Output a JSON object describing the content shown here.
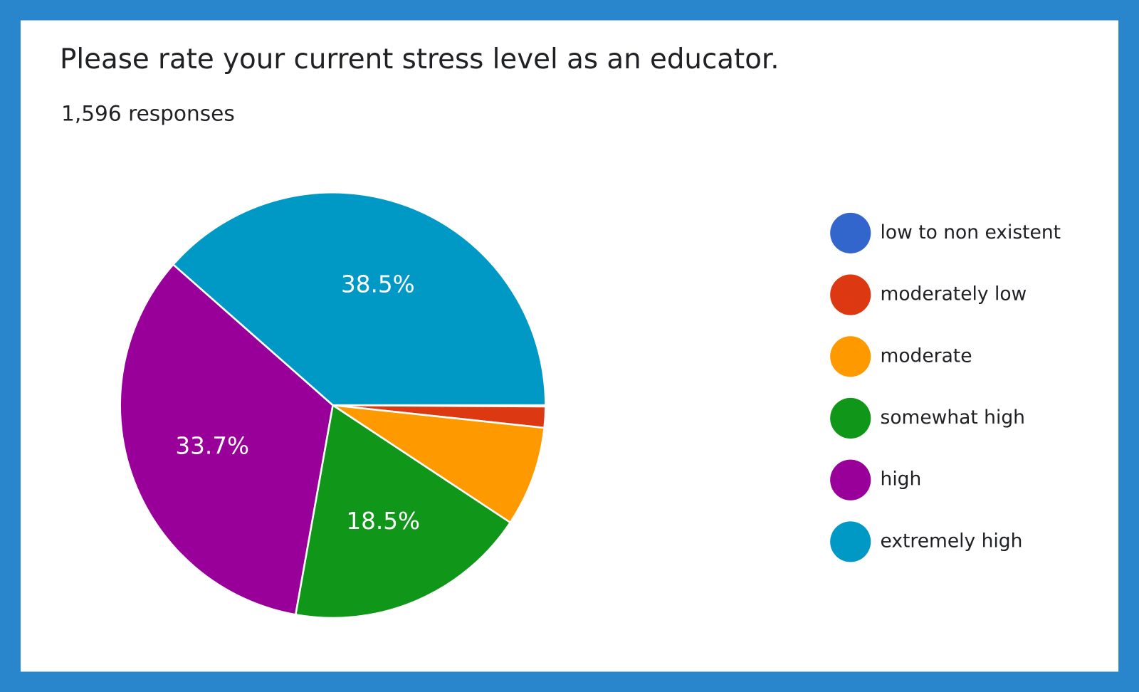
{
  "chart_data": {
    "type": "pie",
    "title": "Please rate your current stress level as an educator.",
    "subtitle": "1,596 responses",
    "categories": [
      "low to non existent",
      "moderately low",
      "moderate",
      "somewhat high",
      "high",
      "extremely high"
    ],
    "values": [
      0.1,
      1.6,
      7.6,
      18.5,
      33.7,
      38.5
    ],
    "value_labels": [
      null,
      null,
      null,
      "18.5%",
      "33.7%",
      "38.5%"
    ],
    "colors": [
      "#3366cc",
      "#dc3912",
      "#ff9900",
      "#109618",
      "#990099",
      "#0099c6"
    ],
    "legend": "right"
  }
}
